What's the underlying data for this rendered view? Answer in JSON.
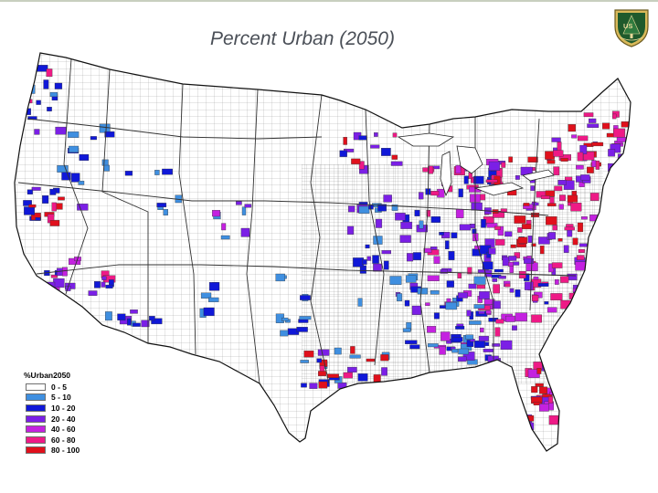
{
  "title": "Percent Urban (2050)",
  "logo": {
    "text": "US",
    "colors": {
      "shield": "#1f5a2c",
      "rim": "#d9b95a"
    }
  },
  "legend": {
    "title": "%Urban2050",
    "items": [
      {
        "label": "0 - 5",
        "color": "#ffffff"
      },
      {
        "label": "5 - 10",
        "color": "#3f8fe0"
      },
      {
        "label": "10 - 20",
        "color": "#1018d8"
      },
      {
        "label": "20 - 40",
        "color": "#7b1fe6"
      },
      {
        "label": "40 - 60",
        "color": "#c421e0"
      },
      {
        "label": "60 - 80",
        "color": "#ee1a86"
      },
      {
        "label": "80 - 100",
        "color": "#e0101c"
      }
    ]
  },
  "map_colors": {
    "land": "#ffffff",
    "county_lines": "#2c2c2c",
    "grid": "#9a9a9a"
  }
}
